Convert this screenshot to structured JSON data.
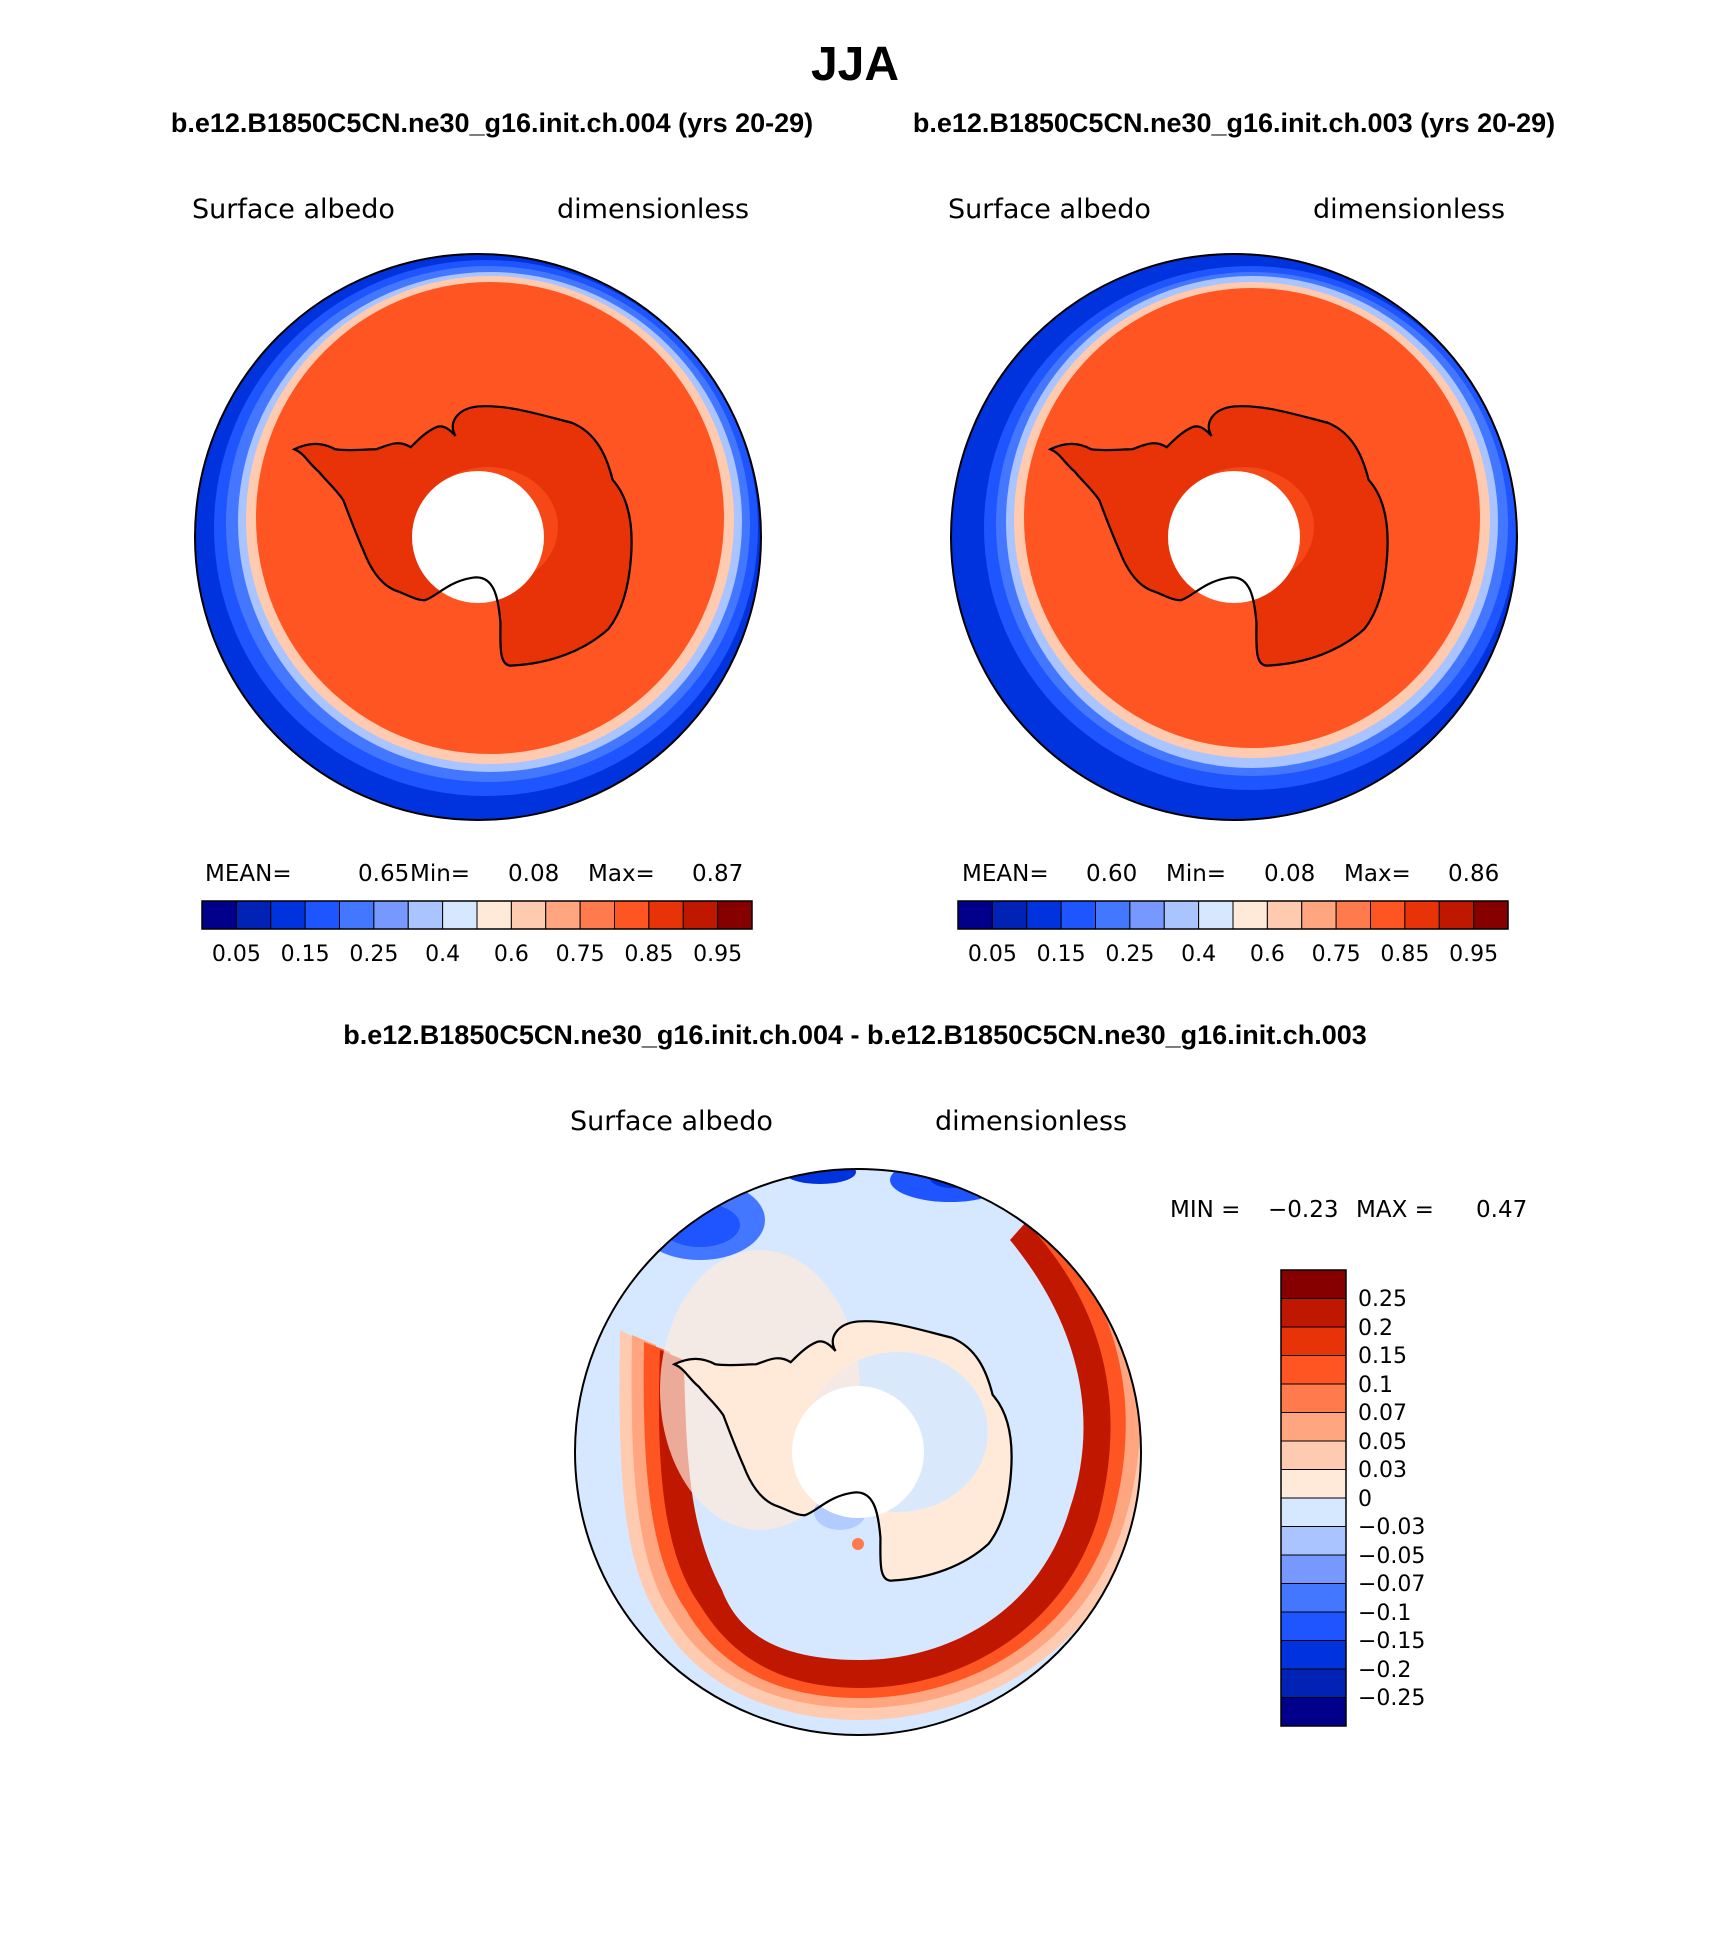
{
  "main_title": "JJA",
  "panels": [
    {
      "case_title": "b.e12.B1850C5CN.ne30_g16.init.ch.004 (yrs 20-29)",
      "variable": "Surface albedo",
      "units": "dimensionless",
      "stats": {
        "mean_label": "MEAN=",
        "mean": "0.65",
        "min_label": "Min=",
        "min": "0.08",
        "max_label": "Max=",
        "max": "0.87"
      }
    },
    {
      "case_title": "b.e12.B1850C5CN.ne30_g16.init.ch.003 (yrs 20-29)",
      "variable": "Surface albedo",
      "units": "dimensionless",
      "stats": {
        "mean_label": "MEAN=",
        "mean": "0.60",
        "min_label": "Min=",
        "min": "0.08",
        "max_label": "Max=",
        "max": "0.86"
      }
    }
  ],
  "colorbar": {
    "colors": [
      "#00008b",
      "#0022b5",
      "#0033dd",
      "#1e55ff",
      "#4477ff",
      "#7799ff",
      "#aac4ff",
      "#d6e8ff",
      "#ffeada",
      "#ffcbb0",
      "#ffa580",
      "#ff7a4d",
      "#ff5522",
      "#e83308",
      "#c01800",
      "#870000"
    ],
    "labels": [
      "0.05",
      "0.15",
      "0.25",
      "0.4",
      "0.6",
      "0.75",
      "0.85",
      "0.95"
    ]
  },
  "diff_panel": {
    "title": "b.e12.B1850C5CN.ne30_g16.init.ch.004 - b.e12.B1850C5CN.ne30_g16.init.ch.003",
    "variable": "Surface albedo",
    "units": "dimensionless",
    "min_label": "MIN =",
    "min": "−0.23",
    "max_label": "MAX =",
    "max": "0.47"
  },
  "diff_colorbar": {
    "colors": [
      "#870000",
      "#c01800",
      "#e83308",
      "#ff5522",
      "#ff7a4d",
      "#ffa580",
      "#ffcbb0",
      "#ffeada",
      "#d6e8ff",
      "#aac4ff",
      "#7799ff",
      "#4477ff",
      "#1e55ff",
      "#0033dd",
      "#0022b5",
      "#00008b"
    ],
    "labels": [
      "0.25",
      "0.2",
      "0.15",
      "0.1",
      "0.07",
      "0.05",
      "0.03",
      "0",
      "−0.03",
      "−0.05",
      "−0.07",
      "−0.1",
      "−0.15",
      "−0.2",
      "−0.25"
    ]
  }
}
